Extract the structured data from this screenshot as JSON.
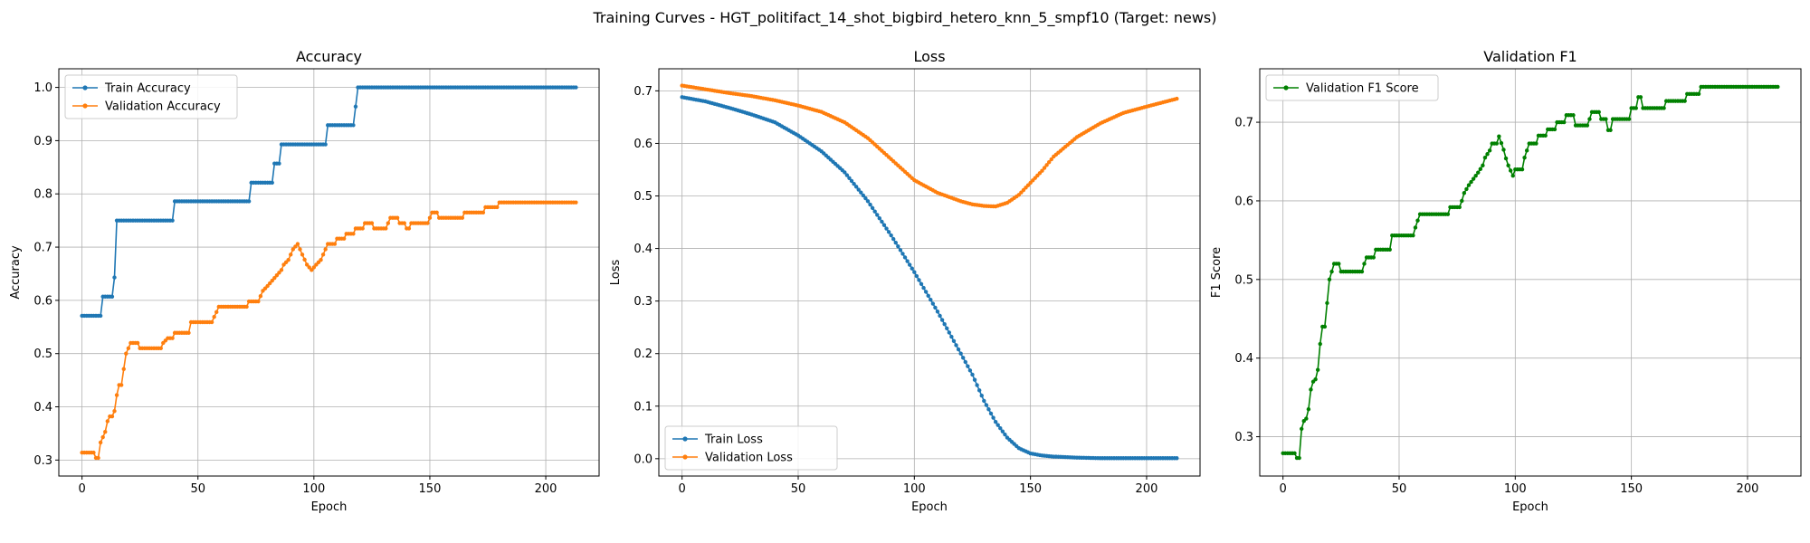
{
  "figure": {
    "suptitle": "Training Curves - HGT_politifact_14_shot_bigbird_hetero_knn_5_smpf10 (Target: news)"
  },
  "colors": {
    "blue": "#1f77b4",
    "orange": "#ff7f0e",
    "green": "#008000",
    "grid": "#b0b0b0"
  },
  "chart_data": [
    {
      "type": "line",
      "title": "Accuracy",
      "xlabel": "Epoch",
      "ylabel": "Accuracy",
      "xlim": [
        -10,
        223
      ],
      "ylim": [
        0.27,
        1.035
      ],
      "xticks": [
        0,
        50,
        100,
        150,
        200
      ],
      "yticks": [
        0.3,
        0.4,
        0.5,
        0.6,
        0.7,
        0.8,
        0.9,
        1.0
      ],
      "ytick_decimals": 1,
      "grid": true,
      "legend": "upper-left",
      "series": [
        {
          "name": "Train Accuracy",
          "color": "#1f77b4",
          "points": [
            [
              0,
              0.571
            ],
            [
              8,
              0.571
            ],
            [
              9,
              0.607
            ],
            [
              13,
              0.607
            ],
            [
              14,
              0.643
            ],
            [
              15,
              0.75
            ],
            [
              39,
              0.75
            ],
            [
              40,
              0.786
            ],
            [
              72,
              0.786
            ],
            [
              73,
              0.821
            ],
            [
              82,
              0.821
            ],
            [
              83,
              0.857
            ],
            [
              85,
              0.857
            ],
            [
              86,
              0.893
            ],
            [
              105,
              0.893
            ],
            [
              106,
              0.929
            ],
            [
              117,
              0.929
            ],
            [
              118,
              0.964
            ],
            [
              119,
              1.0
            ],
            [
              213,
              1.0
            ]
          ]
        },
        {
          "name": "Validation Accuracy",
          "color": "#ff7f0e",
          "points": [
            [
              0,
              0.314
            ],
            [
              5,
              0.314
            ],
            [
              6,
              0.304
            ],
            [
              7,
              0.304
            ],
            [
              8,
              0.333
            ],
            [
              9,
              0.343
            ],
            [
              10,
              0.353
            ],
            [
              11,
              0.373
            ],
            [
              12,
              0.382
            ],
            [
              13,
              0.382
            ],
            [
              14,
              0.392
            ],
            [
              15,
              0.422
            ],
            [
              16,
              0.441
            ],
            [
              17,
              0.441
            ],
            [
              18,
              0.471
            ],
            [
              19,
              0.5
            ],
            [
              20,
              0.51
            ],
            [
              21,
              0.52
            ],
            [
              24,
              0.52
            ],
            [
              25,
              0.51
            ],
            [
              34,
              0.51
            ],
            [
              35,
              0.52
            ],
            [
              37,
              0.529
            ],
            [
              39,
              0.529
            ],
            [
              40,
              0.539
            ],
            [
              46,
              0.539
            ],
            [
              47,
              0.559
            ],
            [
              56,
              0.559
            ],
            [
              57,
              0.569
            ],
            [
              58,
              0.578
            ],
            [
              59,
              0.588
            ],
            [
              71,
              0.588
            ],
            [
              72,
              0.598
            ],
            [
              76,
              0.598
            ],
            [
              77,
              0.608
            ],
            [
              78,
              0.618
            ],
            [
              80,
              0.627
            ],
            [
              82,
              0.637
            ],
            [
              84,
              0.647
            ],
            [
              86,
              0.657
            ],
            [
              87,
              0.667
            ],
            [
              89,
              0.676
            ],
            [
              90,
              0.686
            ],
            [
              91,
              0.696
            ],
            [
              93,
              0.706
            ],
            [
              95,
              0.686
            ],
            [
              97,
              0.667
            ],
            [
              99,
              0.657
            ],
            [
              101,
              0.667
            ],
            [
              103,
              0.676
            ],
            [
              104,
              0.686
            ],
            [
              105,
              0.696
            ],
            [
              106,
              0.706
            ],
            [
              109,
              0.706
            ],
            [
              110,
              0.716
            ],
            [
              113,
              0.716
            ],
            [
              114,
              0.725
            ],
            [
              117,
              0.725
            ],
            [
              118,
              0.735
            ],
            [
              121,
              0.735
            ],
            [
              122,
              0.745
            ],
            [
              125,
              0.745
            ],
            [
              126,
              0.735
            ],
            [
              131,
              0.735
            ],
            [
              132,
              0.745
            ],
            [
              133,
              0.755
            ],
            [
              136,
              0.755
            ],
            [
              137,
              0.745
            ],
            [
              139,
              0.745
            ],
            [
              140,
              0.735
            ],
            [
              141,
              0.735
            ],
            [
              142,
              0.745
            ],
            [
              149,
              0.745
            ],
            [
              150,
              0.755
            ],
            [
              151,
              0.765
            ],
            [
              153,
              0.765
            ],
            [
              154,
              0.755
            ],
            [
              164,
              0.755
            ],
            [
              165,
              0.765
            ],
            [
              173,
              0.765
            ],
            [
              174,
              0.775
            ],
            [
              179,
              0.775
            ],
            [
              180,
              0.784
            ],
            [
              213,
              0.784
            ]
          ]
        }
      ]
    },
    {
      "type": "line",
      "title": "Loss",
      "xlabel": "Epoch",
      "ylabel": "Loss",
      "xlim": [
        -10,
        223
      ],
      "ylim": [
        -0.033,
        0.742
      ],
      "xticks": [
        0,
        50,
        100,
        150,
        200
      ],
      "yticks": [
        0.0,
        0.1,
        0.2,
        0.3,
        0.4,
        0.5,
        0.6,
        0.7
      ],
      "ytick_decimals": 1,
      "grid": true,
      "legend": "lower-left",
      "series": [
        {
          "name": "Train Loss",
          "color": "#1f77b4",
          "points": [
            [
              0,
              0.688
            ],
            [
              10,
              0.68
            ],
            [
              20,
              0.668
            ],
            [
              30,
              0.655
            ],
            [
              40,
              0.64
            ],
            [
              50,
              0.615
            ],
            [
              60,
              0.585
            ],
            [
              70,
              0.545
            ],
            [
              80,
              0.49
            ],
            [
              90,
              0.425
            ],
            [
              100,
              0.355
            ],
            [
              110,
              0.28
            ],
            [
              120,
              0.2
            ],
            [
              125,
              0.16
            ],
            [
              130,
              0.11
            ],
            [
              135,
              0.07
            ],
            [
              140,
              0.04
            ],
            [
              145,
              0.02
            ],
            [
              150,
              0.01
            ],
            [
              155,
              0.006
            ],
            [
              160,
              0.004
            ],
            [
              170,
              0.002
            ],
            [
              180,
              0.001
            ],
            [
              213,
              0.001
            ]
          ]
        },
        {
          "name": "Validation Loss",
          "color": "#ff7f0e",
          "points": [
            [
              0,
              0.71
            ],
            [
              10,
              0.703
            ],
            [
              20,
              0.696
            ],
            [
              30,
              0.69
            ],
            [
              40,
              0.682
            ],
            [
              50,
              0.672
            ],
            [
              60,
              0.66
            ],
            [
              70,
              0.64
            ],
            [
              80,
              0.61
            ],
            [
              90,
              0.57
            ],
            [
              100,
              0.53
            ],
            [
              110,
              0.506
            ],
            [
              120,
              0.49
            ],
            [
              125,
              0.484
            ],
            [
              130,
              0.481
            ],
            [
              135,
              0.48
            ],
            [
              140,
              0.487
            ],
            [
              145,
              0.502
            ],
            [
              150,
              0.525
            ],
            [
              155,
              0.548
            ],
            [
              160,
              0.575
            ],
            [
              170,
              0.612
            ],
            [
              180,
              0.638
            ],
            [
              190,
              0.658
            ],
            [
              200,
              0.67
            ],
            [
              213,
              0.685
            ]
          ]
        }
      ]
    },
    {
      "type": "line",
      "title": "Validation F1",
      "xlabel": "Epoch",
      "ylabel": "F1 Score",
      "xlim": [
        -10,
        223
      ],
      "ylim": [
        0.25,
        0.768
      ],
      "xticks": [
        0,
        50,
        100,
        150,
        200
      ],
      "yticks": [
        0.3,
        0.4,
        0.5,
        0.6,
        0.7
      ],
      "ytick_decimals": 1,
      "grid": true,
      "legend": "upper-left",
      "series": [
        {
          "name": "Validation F1 Score",
          "color": "#008000",
          "points": [
            [
              0,
              0.279
            ],
            [
              5,
              0.279
            ],
            [
              6,
              0.273
            ],
            [
              7,
              0.273
            ],
            [
              8,
              0.31
            ],
            [
              9,
              0.32
            ],
            [
              10,
              0.323
            ],
            [
              11,
              0.335
            ],
            [
              12,
              0.36
            ],
            [
              13,
              0.37
            ],
            [
              14,
              0.373
            ],
            [
              15,
              0.385
            ],
            [
              16,
              0.418
            ],
            [
              17,
              0.44
            ],
            [
              18,
              0.44
            ],
            [
              19,
              0.47
            ],
            [
              20,
              0.5
            ],
            [
              21,
              0.51
            ],
            [
              22,
              0.52
            ],
            [
              24,
              0.52
            ],
            [
              25,
              0.51
            ],
            [
              34,
              0.51
            ],
            [
              35,
              0.52
            ],
            [
              36,
              0.528
            ],
            [
              39,
              0.528
            ],
            [
              40,
              0.538
            ],
            [
              46,
              0.538
            ],
            [
              47,
              0.556
            ],
            [
              56,
              0.556
            ],
            [
              57,
              0.566
            ],
            [
              58,
              0.575
            ],
            [
              59,
              0.583
            ],
            [
              71,
              0.583
            ],
            [
              72,
              0.592
            ],
            [
              76,
              0.592
            ],
            [
              77,
              0.6
            ],
            [
              78,
              0.61
            ],
            [
              80,
              0.62
            ],
            [
              82,
              0.628
            ],
            [
              84,
              0.636
            ],
            [
              86,
              0.645
            ],
            [
              87,
              0.655
            ],
            [
              89,
              0.664
            ],
            [
              90,
              0.673
            ],
            [
              92,
              0.673
            ],
            [
              93,
              0.682
            ],
            [
              95,
              0.665
            ],
            [
              96,
              0.654
            ],
            [
              97,
              0.645
            ],
            [
              99,
              0.632
            ],
            [
              100,
              0.64
            ],
            [
              103,
              0.64
            ],
            [
              104,
              0.655
            ],
            [
              105,
              0.664
            ],
            [
              106,
              0.673
            ],
            [
              109,
              0.673
            ],
            [
              110,
              0.683
            ],
            [
              113,
              0.683
            ],
            [
              114,
              0.691
            ],
            [
              117,
              0.691
            ],
            [
              118,
              0.7
            ],
            [
              121,
              0.7
            ],
            [
              122,
              0.709
            ],
            [
              125,
              0.709
            ],
            [
              126,
              0.696
            ],
            [
              131,
              0.696
            ],
            [
              132,
              0.704
            ],
            [
              133,
              0.713
            ],
            [
              136,
              0.713
            ],
            [
              137,
              0.704
            ],
            [
              139,
              0.704
            ],
            [
              140,
              0.69
            ],
            [
              141,
              0.69
            ],
            [
              142,
              0.704
            ],
            [
              149,
              0.704
            ],
            [
              150,
              0.718
            ],
            [
              152,
              0.718
            ],
            [
              153,
              0.732
            ],
            [
              154,
              0.732
            ],
            [
              155,
              0.718
            ],
            [
              164,
              0.718
            ],
            [
              165,
              0.727
            ],
            [
              173,
              0.727
            ],
            [
              174,
              0.736
            ],
            [
              179,
              0.736
            ],
            [
              180,
              0.745
            ],
            [
              213,
              0.745
            ]
          ]
        }
      ]
    }
  ]
}
